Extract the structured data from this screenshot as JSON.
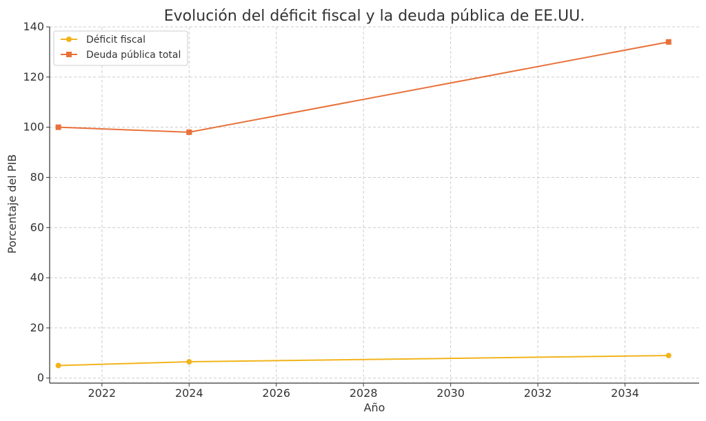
{
  "chart_data": {
    "type": "line",
    "title": "Evolución del déficit fiscal y la deuda pública de EE.UU.",
    "xlabel": "Año",
    "ylabel": "Porcentaje del PIB",
    "xlim": [
      2020.8,
      2035.7
    ],
    "ylim": [
      -2,
      140
    ],
    "xticks": [
      2022,
      2024,
      2026,
      2028,
      2030,
      2032,
      2034
    ],
    "yticks": [
      0,
      20,
      40,
      60,
      80,
      100,
      120,
      140
    ],
    "grid": true,
    "legend_position": "top-left",
    "series": [
      {
        "name": "Déficit fiscal",
        "color": "#f2b31b",
        "marker": "circle",
        "x": [
          2021,
          2024,
          2035
        ],
        "y": [
          5.0,
          6.5,
          9.0
        ]
      },
      {
        "name": "Deuda pública total",
        "color": "#e8713a",
        "marker": "square",
        "x": [
          2021,
          2024,
          2035
        ],
        "y": [
          100,
          98,
          134
        ]
      }
    ]
  }
}
